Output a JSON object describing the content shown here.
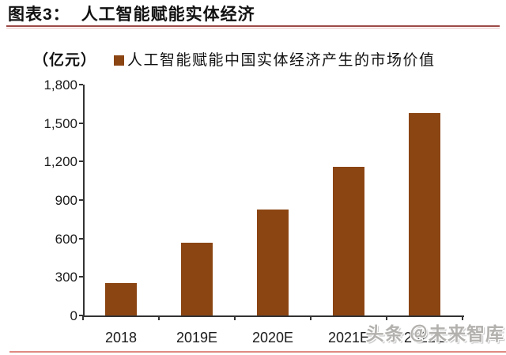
{
  "header": {
    "figure_label": "图表3：",
    "figure_title": "人工智能赋能实体经济"
  },
  "legend": {
    "unit_label": "（亿元）",
    "series_label": "人工智能赋能中国实体经济产生的市场价值"
  },
  "watermark": {
    "text": "头条 ＠未来智库"
  },
  "colors": {
    "bar": "#8b4513",
    "axis": "#333333",
    "title_rule_dark": "#9c4a48",
    "title_rule_light": "#e3b8b6",
    "bottom_rule": "#e08a82"
  },
  "chart_data": {
    "type": "bar",
    "title": "图表3： 人工智能赋能实体经济",
    "series_name": "人工智能赋能中国实体经济产生的市场价值",
    "unit": "亿元",
    "categories": [
      "2018",
      "2019E",
      "2020E",
      "2021E",
      "2022E"
    ],
    "values": [
      250,
      570,
      825,
      1160,
      1580
    ],
    "ylim": [
      0,
      1800
    ],
    "yticks": [
      0,
      300,
      600,
      900,
      1200,
      1500,
      1800
    ],
    "ytick_labels": [
      "0",
      "300",
      "600",
      "900",
      "1,200",
      "1,500",
      "1,800"
    ],
    "xlabel": "",
    "ylabel": "（亿元）",
    "grid": false,
    "legend_position": "top"
  }
}
